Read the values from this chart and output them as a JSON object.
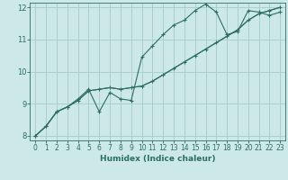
{
  "xlabel": "Humidex (Indice chaleur)",
  "bg_color": "#cce8e8",
  "grid_color": "#aacfcf",
  "line_color": "#2d6e65",
  "xlim": [
    -0.5,
    23.5
  ],
  "ylim": [
    7.85,
    12.15
  ],
  "yticks": [
    8,
    9,
    10,
    11,
    12
  ],
  "xticks": [
    0,
    1,
    2,
    3,
    4,
    5,
    6,
    7,
    8,
    9,
    10,
    11,
    12,
    13,
    14,
    15,
    16,
    17,
    18,
    19,
    20,
    21,
    22,
    23
  ],
  "line1_x": [
    0,
    1,
    2,
    3,
    4,
    5,
    6,
    7,
    8,
    9,
    10,
    11,
    12,
    13,
    14,
    15,
    16,
    17,
    18,
    19,
    20,
    21,
    22,
    23
  ],
  "line1_y": [
    8.0,
    8.3,
    8.75,
    8.9,
    9.1,
    9.4,
    9.45,
    9.5,
    9.45,
    9.5,
    9.55,
    9.7,
    9.9,
    10.1,
    10.3,
    10.5,
    10.7,
    10.9,
    11.1,
    11.3,
    11.6,
    11.8,
    11.9,
    12.0
  ],
  "line2_x": [
    0,
    1,
    2,
    3,
    4,
    5,
    6,
    7,
    8,
    9,
    10,
    11,
    12,
    13,
    14,
    15,
    16,
    17,
    18,
    19,
    20,
    21,
    22,
    23
  ],
  "line2_y": [
    8.0,
    8.3,
    8.75,
    8.9,
    9.15,
    9.45,
    8.75,
    9.35,
    9.15,
    9.1,
    10.45,
    10.8,
    11.15,
    11.45,
    11.6,
    11.9,
    12.1,
    11.85,
    11.15,
    11.25,
    11.9,
    11.85,
    11.75,
    11.85
  ],
  "line3_x": [
    0,
    1,
    2,
    3,
    4,
    5,
    6,
    7,
    8,
    9,
    10,
    11,
    12,
    13,
    14,
    15,
    16,
    17,
    18,
    19,
    20,
    21,
    22,
    23
  ],
  "line3_y": [
    8.0,
    8.3,
    8.75,
    8.9,
    9.1,
    9.4,
    9.45,
    9.5,
    9.45,
    9.5,
    9.55,
    9.7,
    9.9,
    10.1,
    10.3,
    10.5,
    10.7,
    10.9,
    11.1,
    11.3,
    11.6,
    11.8,
    11.9,
    12.0
  ]
}
